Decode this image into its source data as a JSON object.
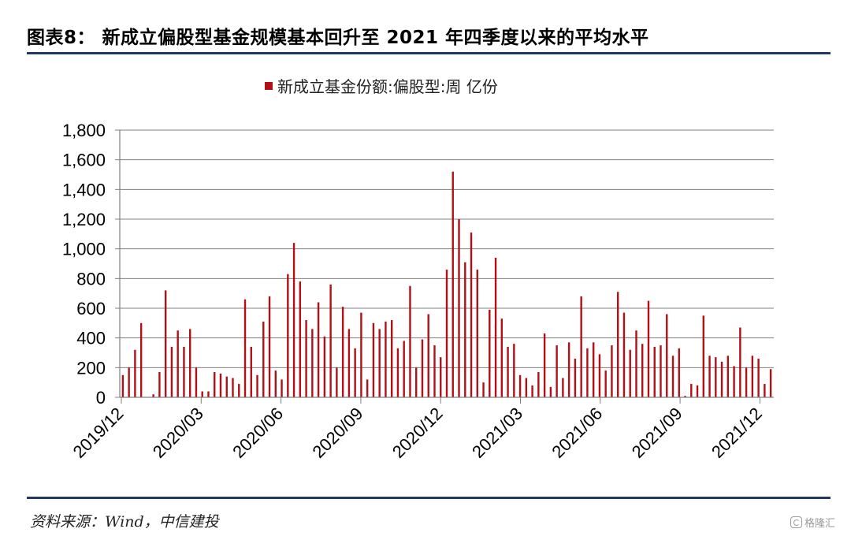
{
  "header": {
    "title": "图表8：  新成立偏股型基金规模基本回升至 2021 年四季度以来的平均水平"
  },
  "footer": {
    "source": "资料来源：Wind，中信建投",
    "watermark": "格隆汇"
  },
  "colors": {
    "bar": "#b11116",
    "rule": "#1f3864",
    "grid": "#808080",
    "axis": "#808080"
  },
  "chart_data": {
    "type": "bar",
    "legend": "新成立基金份额:偏股型:周  亿份",
    "legend_position": "top-center",
    "ylim": [
      0,
      1800
    ],
    "yticks": [
      "0",
      "200",
      "400",
      "600",
      "800",
      "1,000",
      "1,200",
      "1,400",
      "1,600",
      "1,800"
    ],
    "grid": true,
    "xticks": [
      "2019/12",
      "2020/03",
      "2020/06",
      "2020/09",
      "2020/12",
      "2021/03",
      "2021/06",
      "2021/09",
      "2021/12"
    ],
    "series": [
      {
        "values": [
          150,
          200,
          320,
          500,
          0,
          20,
          170,
          720,
          340,
          450,
          340,
          460,
          200,
          40,
          40,
          170,
          160,
          140,
          130,
          90,
          660,
          340,
          150,
          510,
          680,
          180,
          120,
          830,
          1040,
          780,
          520,
          460,
          640,
          410,
          760,
          200,
          610,
          460,
          330,
          570,
          120,
          500,
          460,
          510,
          520,
          330,
          380,
          750,
          200,
          390,
          560,
          350,
          270,
          860,
          1520,
          1200,
          910,
          1110,
          860,
          100,
          590,
          940,
          530,
          340,
          360,
          150,
          130,
          80,
          170,
          430,
          70,
          350,
          130,
          370,
          260,
          680,
          330,
          370,
          290,
          180,
          350,
          710,
          570,
          320,
          450,
          360,
          650,
          340,
          350,
          560,
          280,
          330,
          10,
          90,
          80,
          550,
          280,
          270,
          240,
          280,
          210,
          470,
          200,
          280,
          260,
          90,
          190
        ]
      }
    ]
  }
}
